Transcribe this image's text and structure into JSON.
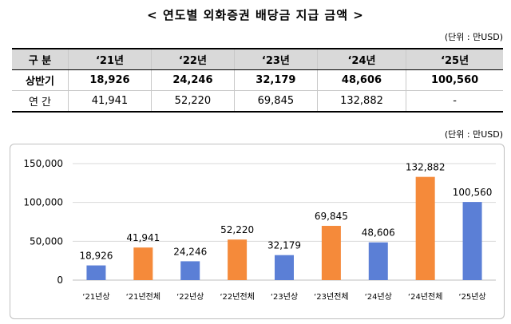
{
  "title": "< 연도별 외화증권 배당금 지급 금액 >",
  "unit_label": "(단위 : 만USD)",
  "table": {
    "header": [
      "구 분",
      "‘21년",
      "‘22년",
      "‘23년",
      "‘24년",
      "‘25년"
    ],
    "rows": [
      {
        "label": "상반기",
        "values": [
          "18,926",
          "24,246",
          "32,179",
          "48,606",
          "100,560"
        ]
      },
      {
        "label": "연 간",
        "values": [
          "41,941",
          "52,220",
          "69,845",
          "132,882",
          "-"
        ]
      }
    ]
  },
  "chart_unit_label": "(단위 : 만USD)",
  "colors": {
    "half": "#5b7fd6",
    "full": "#f58a3a"
  },
  "chart_data": {
    "type": "bar",
    "categories": [
      "‘21년상",
      "‘21년전체",
      "‘22년상",
      "‘22년전체",
      "‘23년상",
      "‘23년전체",
      "‘24년상",
      "‘24년전체",
      "‘25년상"
    ],
    "values": [
      18926,
      41941,
      24246,
      52220,
      32179,
      69845,
      48606,
      132882,
      100560
    ],
    "data_labels": [
      "18,926",
      "41,941",
      "24,246",
      "52,220",
      "32,179",
      "69,845",
      "48,606",
      "132,882",
      "100,560"
    ],
    "bar_kinds": [
      "half",
      "full",
      "half",
      "full",
      "half",
      "full",
      "half",
      "full",
      "half"
    ],
    "ylim": [
      0,
      150000
    ],
    "yticks": [
      0,
      50000,
      100000,
      150000
    ],
    "ytick_labels": [
      "0",
      "50,000",
      "100,000",
      "150,000"
    ],
    "grid": true
  }
}
